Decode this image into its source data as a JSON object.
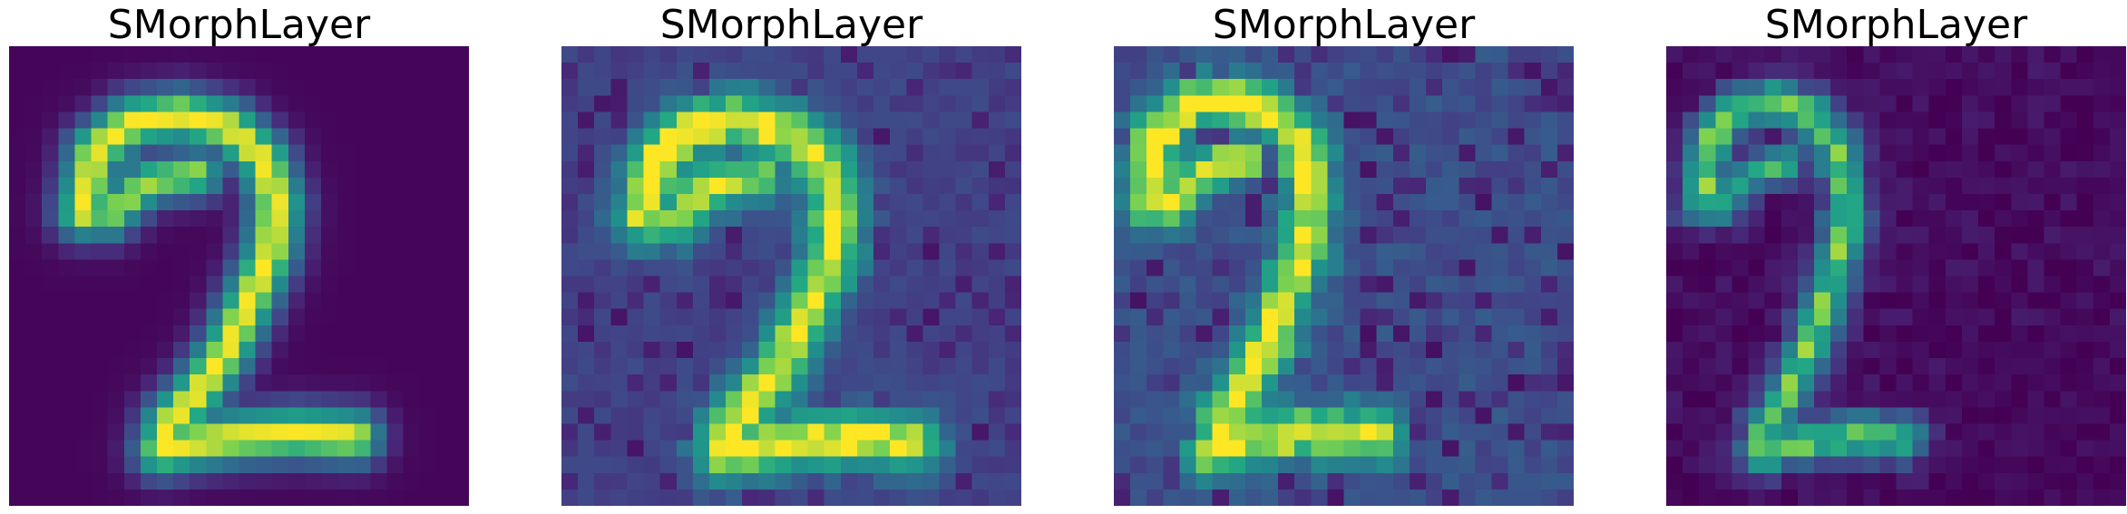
{
  "panels": [
    {
      "title": "SMorphLayer",
      "variant": "input",
      "pattern": "digit-two"
    },
    {
      "title": "SMorphLayer",
      "variant": "feature-map-1",
      "pattern": "digit-two"
    },
    {
      "title": "SMorphLayer",
      "variant": "feature-map-2",
      "pattern": "digit-two-left-shift"
    },
    {
      "title": "SMorphLayer",
      "variant": "feature-map-3",
      "pattern": "digit-two-sparse"
    }
  ],
  "colormap": "viridis",
  "colors": {
    "viridis_low": "#440154",
    "viridis_mid": "#21918c",
    "viridis_high": "#fde725",
    "background": "#ffffff"
  }
}
